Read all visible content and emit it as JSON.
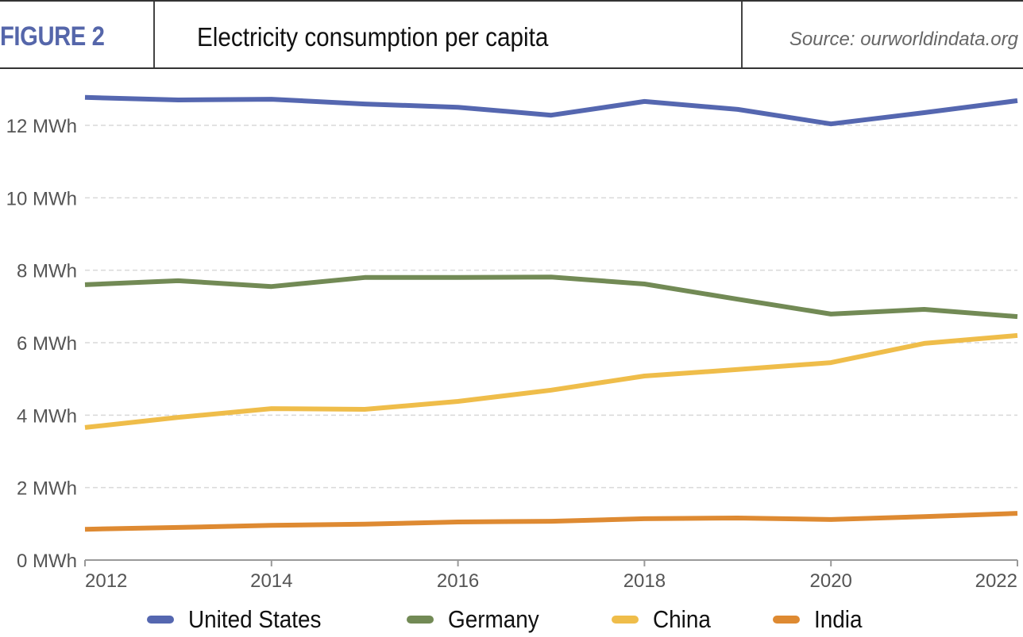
{
  "header": {
    "figure_label": "FIGURE 2",
    "title": "Electricity consumption per capita",
    "source": "Source: ourworldindata.org"
  },
  "colors": {
    "figure_label": "#5566aa",
    "united_states": "#5567b0",
    "germany": "#728a55",
    "china": "#efbd4a",
    "india": "#de8a32",
    "grid": "#d9d9d9",
    "axis": "#999999",
    "tick_text": "#555555"
  },
  "chart_data": {
    "type": "line",
    "title": "Electricity consumption per capita",
    "xlabel": "",
    "ylabel": "",
    "x": [
      2012,
      2013,
      2014,
      2015,
      2016,
      2017,
      2018,
      2019,
      2020,
      2021,
      2022
    ],
    "xlim": [
      2012,
      2022
    ],
    "ylim": [
      0,
      13.2
    ],
    "x_ticks": [
      2012,
      2014,
      2016,
      2018,
      2020,
      2022
    ],
    "x_tick_labels": [
      "2012",
      "2014",
      "2016",
      "2018",
      "2020",
      "2022"
    ],
    "y_ticks": [
      0,
      2,
      4,
      6,
      8,
      10,
      12
    ],
    "y_tick_labels": [
      "0 MWh",
      "2 MWh",
      "4 MWh",
      "6 MWh",
      "8 MWh",
      "10 MWh",
      "12 MWh"
    ],
    "grid": true,
    "legend_position": "bottom",
    "series": [
      {
        "name": "United States",
        "color_key": "united_states",
        "values": [
          12.77,
          12.7,
          12.72,
          12.59,
          12.5,
          12.28,
          12.66,
          12.44,
          12.04,
          12.35,
          12.68
        ]
      },
      {
        "name": "Germany",
        "color_key": "germany",
        "values": [
          7.6,
          7.71,
          7.55,
          7.8,
          7.8,
          7.81,
          7.62,
          7.2,
          6.79,
          6.92,
          6.72
        ]
      },
      {
        "name": "China",
        "color_key": "china",
        "values": [
          3.66,
          3.94,
          4.18,
          4.16,
          4.38,
          4.69,
          5.08,
          5.26,
          5.45,
          5.98,
          6.2
        ]
      },
      {
        "name": "India",
        "color_key": "india",
        "values": [
          0.85,
          0.9,
          0.96,
          0.99,
          1.05,
          1.07,
          1.14,
          1.16,
          1.12,
          1.2,
          1.29
        ]
      }
    ]
  }
}
